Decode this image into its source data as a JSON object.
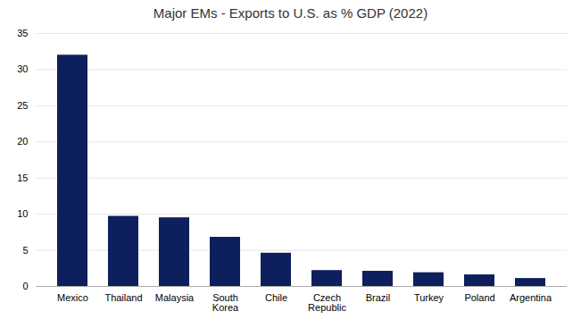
{
  "chart_data": {
    "type": "bar",
    "title": "Major EMs - Exports to U.S. as % GDP (2022)",
    "categories": [
      "Mexico",
      "Thailand",
      "Malaysia",
      "South\nKorea",
      "Chile",
      "Czech\nRepublic",
      "Brazil",
      "Turkey",
      "Poland",
      "Argentina"
    ],
    "values": [
      32.0,
      9.7,
      9.5,
      6.8,
      4.6,
      2.2,
      2.1,
      1.9,
      1.6,
      1.1
    ],
    "color": "#0d1f5c",
    "ylim": [
      0,
      35
    ],
    "yticks": [
      0,
      5,
      10,
      15,
      20,
      25,
      30,
      35
    ],
    "grid": true
  }
}
